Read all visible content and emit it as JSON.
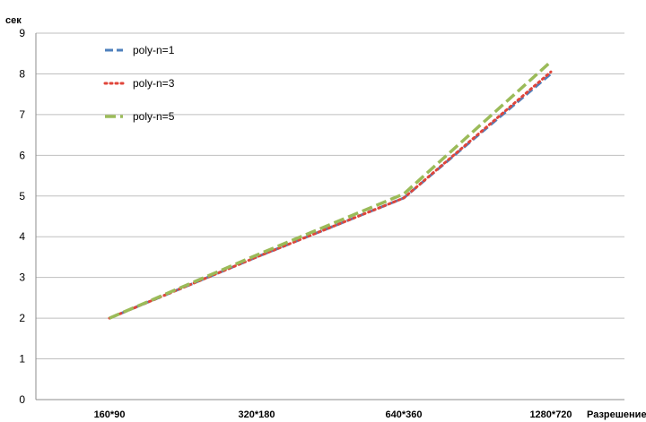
{
  "chart_data": {
    "type": "line",
    "ylabel": "сек",
    "xlabel": "Разрешение",
    "ylim": [
      0,
      9
    ],
    "yticks": [
      "0",
      "1",
      "2",
      "3",
      "4",
      "5",
      "6",
      "7",
      "8",
      "9"
    ],
    "categories": [
      "160*90",
      "320*180",
      "640*360",
      "1280*720"
    ],
    "grid": true,
    "legend_position": "top-left",
    "series": [
      {
        "name": "poly-n=1",
        "values": [
          2.0,
          3.5,
          4.95,
          8.0
        ],
        "color": "#4f81bd",
        "style": "dash"
      },
      {
        "name": "poly-n=3",
        "values": [
          2.0,
          3.5,
          4.95,
          8.05
        ],
        "color": "#e0453a",
        "style": "dot"
      },
      {
        "name": "poly-n=5",
        "values": [
          2.0,
          3.55,
          5.05,
          8.3
        ],
        "color": "#9bbb59",
        "style": "longdash"
      }
    ]
  }
}
